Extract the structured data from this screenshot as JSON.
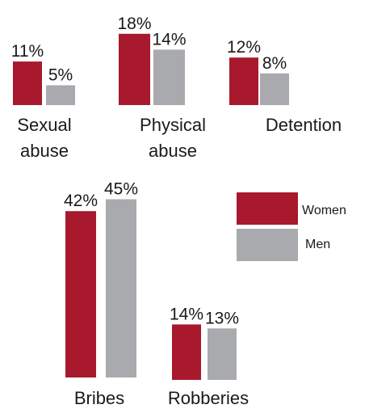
{
  "colors": {
    "women": "#a8192e",
    "men": "#a9aaad"
  },
  "chart_data": {
    "type": "bar",
    "unit": "%",
    "categories": [
      "Sexual abuse",
      "Physical abuse",
      "Detention",
      "Bribes",
      "Robberies"
    ],
    "category_label_lines": [
      [
        "Sexual",
        "abuse"
      ],
      [
        "Physical",
        "abuse"
      ],
      [
        "Detention"
      ],
      [
        "Bribes"
      ],
      [
        "Robberies"
      ]
    ],
    "series": [
      {
        "name": "Women",
        "values": [
          11,
          18,
          12,
          42,
          14
        ],
        "labels": [
          "11%",
          "18%",
          "12%",
          "42%",
          "14%"
        ]
      },
      {
        "name": "Men",
        "values": [
          5,
          14,
          8,
          45,
          13
        ],
        "labels": [
          "5%",
          "14%",
          "8%",
          "45%",
          "13%"
        ]
      }
    ],
    "legend": {
      "position": "right",
      "entries": [
        "Women",
        "Men"
      ]
    },
    "grid": false
  }
}
